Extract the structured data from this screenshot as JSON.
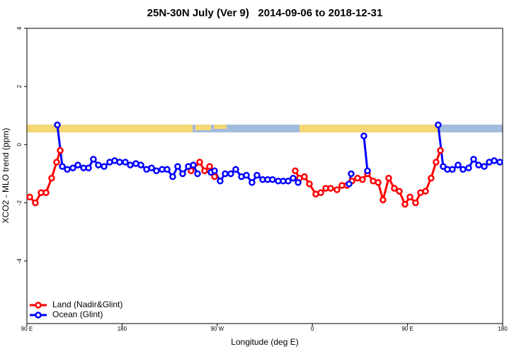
{
  "chart_data": {
    "type": "line",
    "title": "25N-30N July (Ver 9)   2014-09-06 to 2018-12-31",
    "x_label": "Longitude (deg E)",
    "y_label": "XCO2 - MLO trend (ppm)",
    "xlim": [
      90,
      540
    ],
    "xticks": [
      {
        "value": 90,
        "label": "90 E"
      },
      {
        "value": 180,
        "label": "180"
      },
      {
        "value": 270,
        "label": "90 W"
      },
      {
        "value": 360,
        "label": "0"
      },
      {
        "value": 450,
        "label": "90 E"
      },
      {
        "value": 540,
        "label": "180"
      }
    ],
    "ylim": [
      -6.15,
      4
    ],
    "yticks": [
      -4,
      -2,
      0,
      2,
      4
    ],
    "legend": "lower left",
    "series": [
      {
        "name": "Land (Nadir&Glint)",
        "color": "#ff0000",
        "x": [
          92.7,
          98.0,
          103.4,
          108.1,
          113.4,
          118.1,
          121.5,
          null,
          245.3,
          253.4,
          258.1,
          262.8,
          267.5,
          null,
          343.8,
          347.8,
          352.5,
          357.2,
          363.2,
          367.9,
          372.6,
          377.3,
          383.3,
          388.0,
          392.7,
          397.4,
          402.7,
          407.4,
          412.1,
          417.5,
          422.2,
          426.8,
          432.2,
          437.5,
          442.2,
          447.6,
          452.3,
          457.6,
          462.3,
          467.0,
          472.3,
          477.0,
          481.1
        ],
        "values": [
          -1.8,
          -2.0,
          -1.65,
          -1.65,
          -1.15,
          -0.6,
          -0.2,
          null,
          -0.9,
          -0.6,
          -0.9,
          -0.75,
          -1.1,
          null,
          -0.9,
          -1.15,
          -1.1,
          -1.35,
          -1.7,
          -1.65,
          -1.5,
          -1.5,
          -1.55,
          -1.4,
          -1.4,
          -1.25,
          -1.15,
          -1.2,
          -1.0,
          -1.25,
          -1.3,
          -1.9,
          -1.15,
          -1.5,
          -1.6,
          -2.05,
          -1.8,
          -2.0,
          -1.65,
          -1.6,
          -1.15,
          -0.6,
          -0.2
        ]
      },
      {
        "name": "Ocean (Glint)",
        "color": "#0000ff",
        "x": [
          118.8,
          123.5,
          128.2,
          133.5,
          138.2,
          143.6,
          148.3,
          152.9,
          157.6,
          163.0,
          168.3,
          173.0,
          177.7,
          183.1,
          187.8,
          193.1,
          197.8,
          203.2,
          207.9,
          212.5,
          217.9,
          222.6,
          227.9,
          232.6,
          237.3,
          242.7,
          247.4,
          251.4,
          null,
          264.1,
          267.5,
          272.8,
          277.5,
          282.8,
          287.5,
          292.9,
          297.6,
          302.9,
          307.6,
          313.0,
          317.7,
          322.3,
          327.7,
          332.4,
          337.1,
          341.8,
          346.5,
          null,
          394.7,
          396.7,
          null,
          408.7,
          412.1,
          null,
          479.0,
          483.7,
          487.7,
          492.4,
          497.8,
          502.5,
          507.8,
          512.5,
          517.2,
          522.6,
          527.3,
          532.0,
          537.3
        ],
        "values": [
          0.68,
          -0.75,
          -0.85,
          -0.8,
          -0.7,
          -0.8,
          -0.8,
          -0.5,
          -0.7,
          -0.75,
          -0.6,
          -0.55,
          -0.6,
          -0.6,
          -0.7,
          -0.65,
          -0.7,
          -0.85,
          -0.8,
          -0.9,
          -0.85,
          -0.85,
          -1.1,
          -0.75,
          -1.0,
          -0.75,
          -0.7,
          -1.0,
          null,
          -0.95,
          -0.9,
          -1.25,
          -1.0,
          -1.0,
          -0.85,
          -1.1,
          -1.05,
          -1.3,
          -1.05,
          -1.2,
          -1.2,
          -1.2,
          -1.25,
          -1.25,
          -1.25,
          -1.15,
          -1.3,
          null,
          -1.35,
          -1.0,
          null,
          0.3,
          -0.9,
          null,
          0.68,
          -0.75,
          -0.85,
          -0.85,
          -0.7,
          -0.85,
          -0.8,
          -0.5,
          -0.7,
          -0.75,
          -0.6,
          -0.55,
          -0.6
        ]
      }
    ]
  }
}
